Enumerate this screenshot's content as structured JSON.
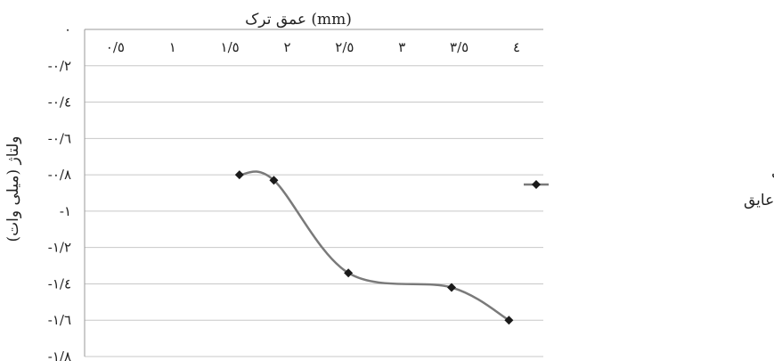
{
  "chart_data": {
    "type": "line",
    "title": "",
    "xlabel": "عمق ترک (mm)",
    "ylabel": "ولتاژ (میلی وات)",
    "x_ticks": [
      "٠/٥",
      "١",
      "١/٥",
      "٢",
      "٢/٥",
      "٣",
      "٣/٥",
      "٤"
    ],
    "y_ticks": [
      "٠",
      "-٠/٢",
      "-٠/٤",
      "-٠/٦",
      "-٠/٨",
      "-١",
      "-١/٢",
      "-١/٤",
      "-١/٦",
      "-١/٨"
    ],
    "xlim": [
      0,
      4
    ],
    "ylim": [
      -1.8,
      0
    ],
    "grid": "horizontal",
    "legend_position": "right",
    "series": [
      {
        "name": "نمودار کالیبراسیون در حالت تست از روی عایق",
        "color": "#7a7a7a",
        "marker": "diamond",
        "x": [
          1.35,
          1.65,
          2.3,
          3.2,
          3.7
        ],
        "y": [
          -0.8,
          -0.83,
          -1.34,
          -1.42,
          -1.6
        ]
      }
    ]
  }
}
